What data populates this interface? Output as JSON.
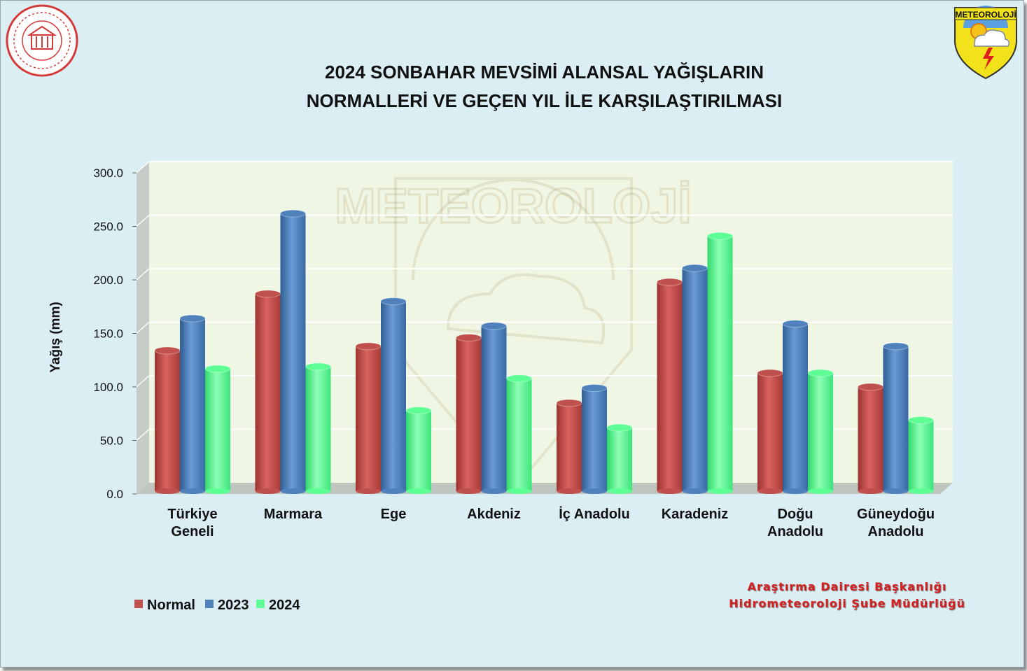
{
  "chart_data": {
    "type": "bar",
    "title": [
      "2024 SONBAHAR MEVSİMİ ALANSAL YAĞIŞLARIN",
      "NORMALLERİ VE GEÇEN YIL İLE KARŞILAŞTIRILMASI"
    ],
    "ylabel": "Yağış (mm)",
    "ylim": [
      0,
      300
    ],
    "yticks": [
      "0.0",
      "50.0",
      "100.0",
      "150.0",
      "200.0",
      "250.0",
      "300.0"
    ],
    "categories": [
      [
        "Türkiye",
        "Geneli"
      ],
      [
        "Marmara"
      ],
      [
        "Ege"
      ],
      [
        "Akdeniz"
      ],
      [
        "İç Anadolu"
      ],
      [
        "Karadeniz"
      ],
      [
        "Doğu",
        "Anadolu"
      ],
      [
        "Güneydoğu",
        "Anadolu"
      ]
    ],
    "series": [
      {
        "name": "Normal",
        "color": "#c0504d",
        "values": [
          134,
          187,
          138,
          146,
          85,
          198,
          113,
          100
        ]
      },
      {
        "name": "2023",
        "color": "#4f81bd",
        "values": [
          164,
          262,
          180,
          157,
          99,
          211,
          159,
          138
        ]
      },
      {
        "name": "2024",
        "color": "#5eff95",
        "values": [
          117,
          119,
          78,
          108,
          62,
          241,
          113,
          69
        ]
      }
    ],
    "legend_position": "bottom-left",
    "grid": true
  },
  "logos": {
    "left_seal": "ministry-seal",
    "right_badge_text": "METEOROLOJİ",
    "watermark_text": "METEOROLOJİ"
  },
  "credit": {
    "line1": "Araştırma Dairesi Başkanlığı",
    "line2": "Hidrometeoroloji Şube Müdürlüğü"
  }
}
